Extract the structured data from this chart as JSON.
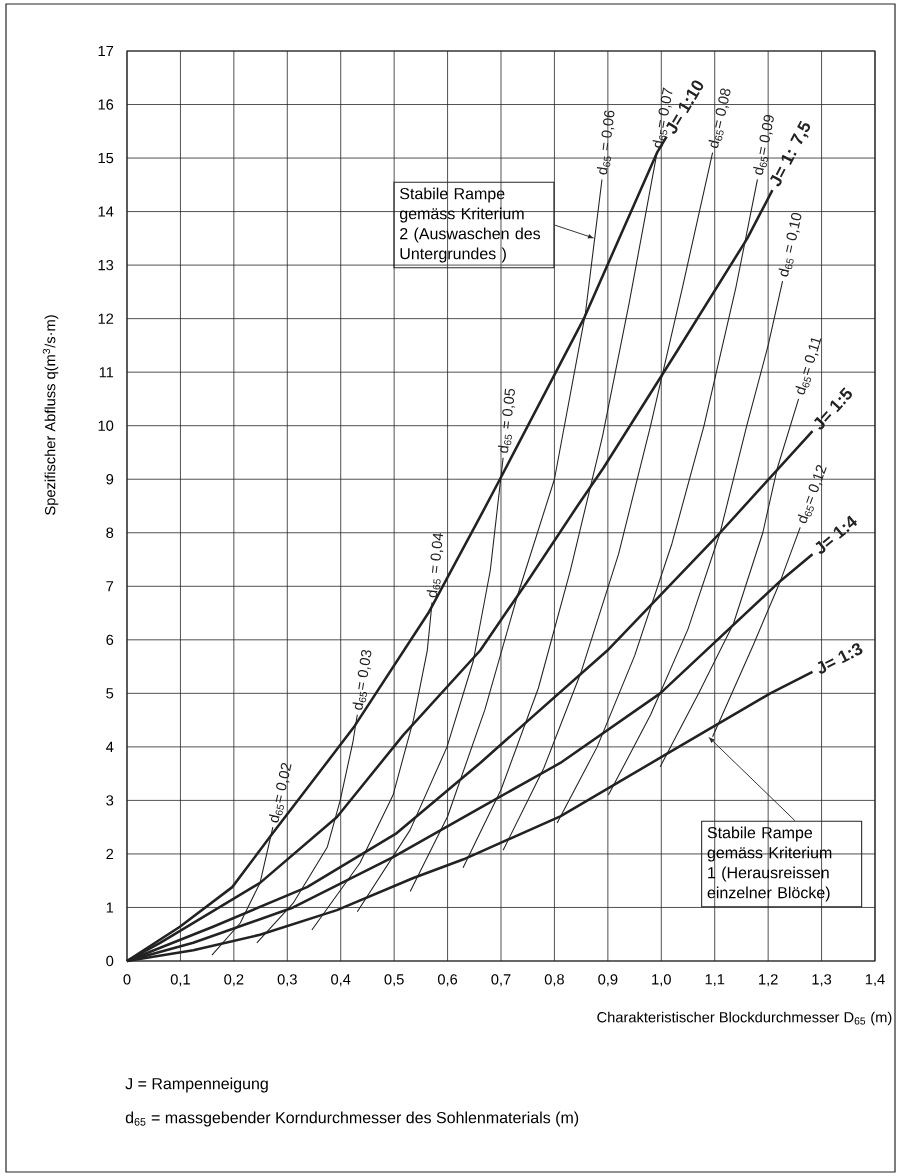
{
  "chart_data": {
    "type": "line",
    "xlabel": "Charakteristischer Blockdurchmesser D$_{65}$ (m)",
    "ylabel": "Spezifischer Abfluss q(m$^{3}$/s·m)",
    "xlim": [
      0,
      1.4
    ],
    "ylim": [
      0,
      17
    ],
    "xticks": [
      0,
      {
        "value": 0.1,
        "label": "0,1"
      },
      {
        "value": 0.2,
        "label": "0,2"
      },
      {
        "value": 0.3,
        "label": "0,3"
      },
      {
        "value": 0.4,
        "label": "0,4"
      },
      {
        "value": 0.5,
        "label": "0,5"
      },
      {
        "value": 0.6,
        "label": "0,6"
      },
      {
        "value": 0.7,
        "label": "0,7"
      },
      {
        "value": 0.8,
        "label": "0,8"
      },
      {
        "value": 0.9,
        "label": "0,9"
      },
      {
        "value": 1.0,
        "label": "1,0"
      },
      {
        "value": 1.1,
        "label": "1,1"
      },
      {
        "value": 1.2,
        "label": "1,2"
      },
      {
        "value": 1.3,
        "label": "1,3"
      },
      {
        "value": 1.4,
        "label": "1,4"
      }
    ],
    "yticks": [
      0,
      1,
      2,
      3,
      4,
      5,
      6,
      7,
      8,
      9,
      10,
      11,
      12,
      13,
      14,
      15,
      16,
      17
    ],
    "grid": true,
    "marker": "none",
    "line_style": "solid",
    "series": [
      {
        "name": "J= 1:10",
        "color": "#222222",
        "x": [
          0,
          0.099,
          0.197,
          0.273,
          0.424,
          0.564,
          0.661,
          0.698,
          0.855,
          0.992,
          1.01
        ],
        "values": [
          0,
          0.64,
          1.38,
          2.39,
          4.36,
          6.5,
          8.3,
          9.0,
          12.0,
          15.1,
          15.4
        ]
      },
      {
        "name": "J= 1: 7,5",
        "color": "#222222",
        "x": [
          0,
          0.062,
          0.249,
          0.393,
          0.517,
          0.661,
          0.75,
          0.843,
          0.891,
          1.03,
          1.161,
          1.208
        ],
        "values": [
          0,
          0.34,
          1.46,
          2.69,
          4.22,
          5.8,
          7.1,
          8.5,
          9.2,
          11.4,
          13.5,
          14.4
        ]
      },
      {
        "name": "J= 1:5",
        "color": "#222222",
        "x": [
          0,
          0.161,
          0.337,
          0.505,
          0.661,
          0.899,
          1.11,
          1.283
        ],
        "values": [
          0,
          0.64,
          1.38,
          2.39,
          3.7,
          5.8,
          8.0,
          9.9
        ]
      },
      {
        "name": "J= 1:4",
        "color": "#222222",
        "x": [
          0,
          0.124,
          0.311,
          0.498,
          0.661,
          0.811,
          0.998,
          1.223,
          1.283
        ],
        "values": [
          0,
          0.34,
          1.0,
          1.94,
          2.86,
          3.7,
          5.0,
          7.1,
          7.6
        ]
      },
      {
        "name": "J= 1:3",
        "color": "#222222",
        "x": [
          0,
          0.124,
          0.249,
          0.393,
          0.536,
          0.63,
          0.811,
          1.007,
          1.204,
          1.283
        ],
        "values": [
          0,
          0.2,
          0.49,
          0.95,
          1.55,
          1.9,
          2.7,
          3.85,
          5.0,
          5.4
        ]
      },
      {
        "name": "d$_{65}$= 0,02",
        "color": "#222222",
        "x": [
          0.159,
          0.212,
          0.249,
          0.273
        ],
        "values": [
          0.11,
          0.71,
          1.46,
          2.5
        ]
      },
      {
        "name": "d$_{65}$= 0,03",
        "color": "#222222",
        "x": [
          0.243,
          0.311,
          0.375,
          0.399,
          0.423,
          0.431
        ],
        "values": [
          0.34,
          1.08,
          2.13,
          3.0,
          4.1,
          4.6
        ]
      },
      {
        "name": "d$_{65}$ = 0,04",
        "color": "#222222",
        "x": [
          0.346,
          0.436,
          0.498,
          0.536,
          0.562,
          0.571
        ],
        "values": [
          0.58,
          1.83,
          3.1,
          4.5,
          5.8,
          6.7
        ]
      },
      {
        "name": "d$_{65}$ = 0,05",
        "color": "#222222",
        "x": [
          0.431,
          0.53,
          0.599,
          0.648,
          0.68,
          0.704
        ],
        "values": [
          0.92,
          2.45,
          4.0,
          5.6,
          7.3,
          9.4
        ]
      },
      {
        "name": "d$_{65}$ = 0,06",
        "color": "#222222",
        "x": [
          0.53,
          0.6,
          0.67,
          0.73,
          0.8,
          0.858,
          0.889
        ],
        "values": [
          1.3,
          2.7,
          4.7,
          6.8,
          9.0,
          12.1,
          14.6
        ]
      },
      {
        "name": "d$_{65}$= 0,07",
        "color": "#222222",
        "x": [
          0.629,
          0.7,
          0.77,
          0.83,
          0.89,
          0.94,
          0.992
        ],
        "values": [
          1.74,
          3.2,
          5.1,
          7.3,
          9.8,
          12.3,
          15.1
        ]
      },
      {
        "name": "d$_{65}$= 0,08",
        "color": "#222222",
        "x": [
          0.704,
          0.78,
          0.85,
          0.92,
          0.98,
          1.04,
          1.096
        ],
        "values": [
          2.07,
          3.6,
          5.4,
          7.6,
          10.0,
          12.6,
          15.1
        ]
      },
      {
        "name": "d$_{65}$= 0,09",
        "color": "#222222",
        "x": [
          0.805,
          0.88,
          0.95,
          1.02,
          1.08,
          1.14,
          1.18
        ],
        "values": [
          2.58,
          4.0,
          5.7,
          7.8,
          10.0,
          12.6,
          14.6
        ]
      },
      {
        "name": "d$_{65}$ = 0,10",
        "color": "#222222",
        "x": [
          0.901,
          0.98,
          1.05,
          1.11,
          1.16,
          1.2,
          1.227
        ],
        "values": [
          3.1,
          4.6,
          6.2,
          8.0,
          10.0,
          11.5,
          12.7
        ]
      },
      {
        "name": "d$_{65}$= 0,11",
        "color": "#222222",
        "x": [
          0.998,
          1.07,
          1.135,
          1.19,
          1.217,
          1.257
        ],
        "values": [
          3.63,
          5.0,
          6.3,
          8.0,
          9.2,
          10.5
        ]
      },
      {
        "name": "d$_{65}$= 0,12",
        "color": "#222222",
        "x": [
          1.096,
          1.172,
          1.223,
          1.26
        ],
        "values": [
          4.19,
          5.9,
          7.1,
          8.1
        ]
      }
    ],
    "annotations": [
      {
        "text": "Stabile Rampe gemäss Kriterium 2 (Auswaschen des Untergrundes )",
        "x": 0.875,
        "y": 13.5
      },
      {
        "text": "Stabile Rampe gemäss Kriterium 1 (Herausreissen einzelner Blöcke)",
        "x": 1.088,
        "y": 4.19
      },
      "J = Rampenneigung",
      "d$_{65}$ = massgebender Korndurchmesser des Sohlenmaterials (m)"
    ]
  }
}
